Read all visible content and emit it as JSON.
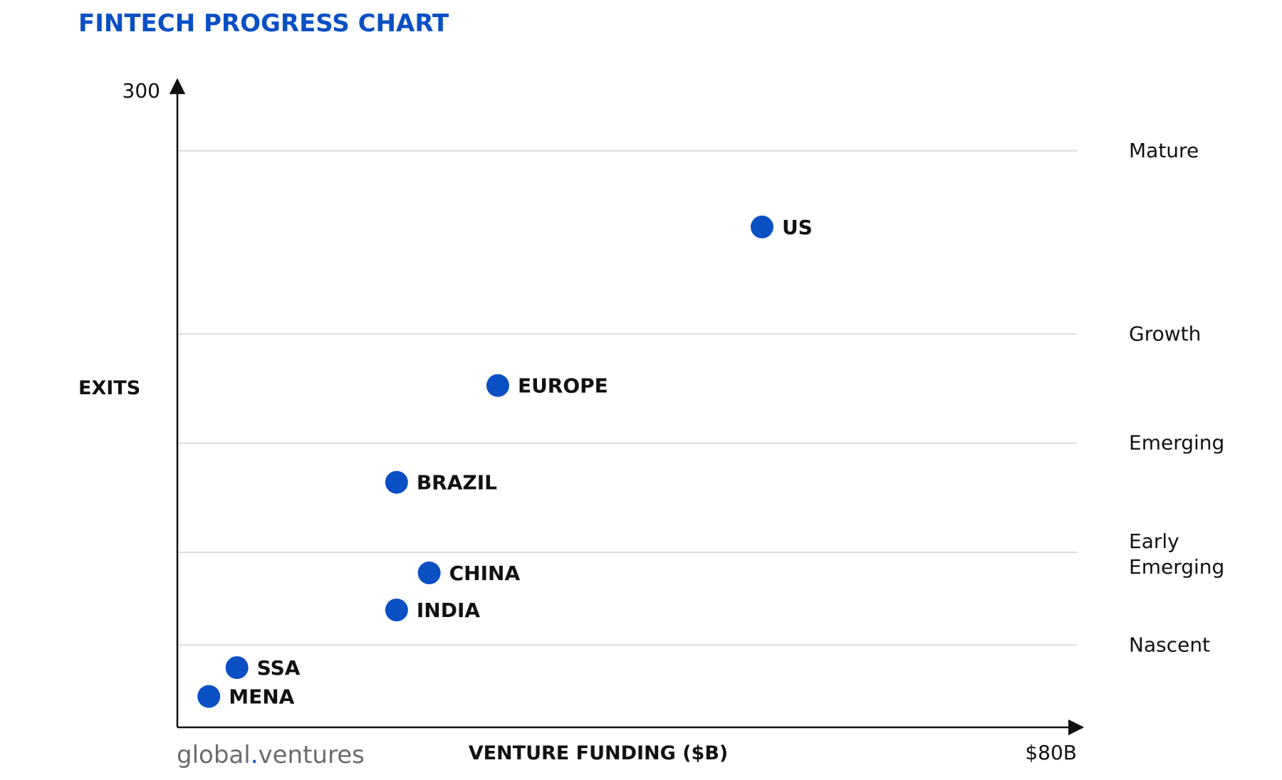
{
  "chart_data": {
    "type": "scatter",
    "title": "FINTECH PROGRESS CHART",
    "xlabel": "VENTURE FUNDING ($B)",
    "ylabel": "EXITS",
    "x_max_label": "$80B",
    "y_max_label": "300",
    "xlim": [
      0,
      80
    ],
    "ylim": [
      0,
      300
    ],
    "grid": false,
    "stages": [
      {
        "name": "Mature",
        "y": 280
      },
      {
        "name": "Growth",
        "y": 191
      },
      {
        "name": "Emerging",
        "y": 138
      },
      {
        "name": "Early\nEmerging",
        "y": 85
      },
      {
        "name": "Nascent",
        "y": 40
      }
    ],
    "points": [
      {
        "label": "US",
        "x": 52,
        "y": 243
      },
      {
        "label": "EUROPE",
        "x": 28.5,
        "y": 166
      },
      {
        "label": "BRAZIL",
        "x": 19.5,
        "y": 119
      },
      {
        "label": "CHINA",
        "x": 22.4,
        "y": 75
      },
      {
        "label": "INDIA",
        "x": 19.5,
        "y": 57
      },
      {
        "label": "SSA",
        "x": 5.3,
        "y": 29
      },
      {
        "label": "MENA",
        "x": 2.8,
        "y": 15
      }
    ],
    "colors": {
      "title": "#0a4fc4",
      "point": "#0a4fc4",
      "stage_line": "#dcdcdc",
      "axis": "#111111"
    }
  },
  "brand": {
    "logo_left": "global",
    "logo_dot": ".",
    "logo_right": "ventures"
  }
}
